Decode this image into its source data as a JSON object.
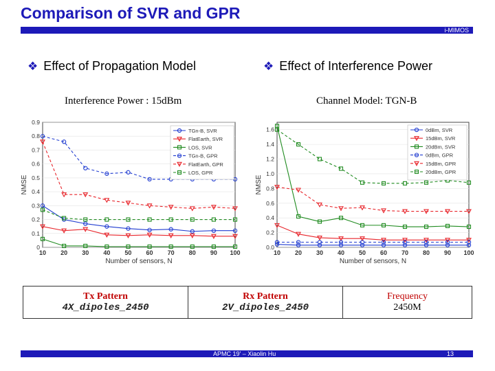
{
  "slide": {
    "title": "Comparison of SVR and GPR",
    "header_tag": "i-MIMOS",
    "left_heading": "Effect of Propagation Model",
    "right_heading": "Effect of Interference Power",
    "bullet_glyph": "❖",
    "left_subheading": "Interference Power : 15dBm",
    "right_subheading": "Channel Model: TGN-B",
    "footer_text": "APMC 19' – Xiaolin Hu",
    "page_number": "13"
  },
  "config": {
    "tx_label": "Tx Pattern",
    "tx_value": "4X_dipoles_2450",
    "rx_label": "Rx Pattern",
    "rx_value": "2V_dipoles_2450",
    "freq_label": "Frequency",
    "freq_value": "2450M"
  },
  "colors": {
    "accent": "#1d1ab8",
    "blue": "#1f3bd0",
    "red": "#e8242a",
    "green": "#1e8a1e",
    "label_red": "#c00000"
  },
  "chart_data": [
    {
      "type": "line",
      "xlabel": "Number of sensors, N",
      "ylabel": "NMSE",
      "x": [
        10,
        20,
        30,
        40,
        50,
        60,
        70,
        80,
        90,
        100
      ],
      "xticks": [
        "10",
        "20",
        "30",
        "40",
        "50",
        "60",
        "70",
        "80",
        "90",
        "100"
      ],
      "yticks": [
        "0",
        "0.1",
        "0.2",
        "0.3",
        "0.4",
        "0.5",
        "0.6",
        "0.7",
        "0.8",
        "0.9"
      ],
      "ylim": [
        0,
        0.9
      ],
      "legend_position": "top-right",
      "series": [
        {
          "name": "TGn-B, SVR",
          "color": "blue",
          "style": "solid",
          "marker": "circle",
          "values": [
            0.3,
            0.2,
            0.17,
            0.15,
            0.135,
            0.125,
            0.13,
            0.115,
            0.12,
            0.12
          ]
        },
        {
          "name": "FlatEarth, SVR",
          "color": "red",
          "style": "solid",
          "marker": "triangle-down",
          "values": [
            0.15,
            0.12,
            0.13,
            0.09,
            0.085,
            0.09,
            0.085,
            0.085,
            0.08,
            0.08
          ]
        },
        {
          "name": "LOS, SVR",
          "color": "green",
          "style": "solid",
          "marker": "square",
          "values": [
            0.06,
            0.01,
            0.01,
            0.005,
            0.005,
            0.005,
            0.005,
            0.005,
            0.005,
            0.005
          ]
        },
        {
          "name": "TGn-B, GPR",
          "color": "blue",
          "style": "dashed",
          "marker": "circle",
          "values": [
            0.8,
            0.76,
            0.57,
            0.53,
            0.54,
            0.49,
            0.49,
            0.49,
            0.49,
            0.49
          ]
        },
        {
          "name": "FlatEarth, GPR",
          "color": "red",
          "style": "dashed",
          "marker": "triangle-down",
          "values": [
            0.76,
            0.38,
            0.38,
            0.34,
            0.32,
            0.3,
            0.29,
            0.28,
            0.29,
            0.28
          ]
        },
        {
          "name": "LOS, GPR",
          "color": "green",
          "style": "dashed",
          "marker": "square",
          "values": [
            0.27,
            0.21,
            0.2,
            0.2,
            0.2,
            0.2,
            0.2,
            0.2,
            0.2,
            0.2
          ]
        }
      ]
    },
    {
      "type": "line",
      "xlabel": "Number of sensors, N",
      "ylabel": "NMSE",
      "x": [
        10,
        20,
        30,
        40,
        50,
        60,
        70,
        80,
        90,
        100
      ],
      "xticks": [
        "10",
        "20",
        "30",
        "40",
        "50",
        "60",
        "70",
        "80",
        "90",
        "100"
      ],
      "yticks": [
        "0.0",
        "0.2",
        "0.4",
        "0.6",
        "0.8",
        "1.0",
        "1.2",
        "1.4",
        "1.6"
      ],
      "ylim": [
        0,
        1.7
      ],
      "legend_position": "top-right",
      "series": [
        {
          "name": "0dBm, SVR",
          "color": "blue",
          "style": "solid",
          "marker": "circle",
          "values": [
            0.04,
            0.03,
            0.03,
            0.03,
            0.03,
            0.03,
            0.03,
            0.03,
            0.03,
            0.03
          ]
        },
        {
          "name": "15dBm, SVR",
          "color": "red",
          "style": "solid",
          "marker": "triangle-down",
          "values": [
            0.3,
            0.18,
            0.13,
            0.12,
            0.12,
            0.1,
            0.1,
            0.1,
            0.1,
            0.1
          ]
        },
        {
          "name": "20dBm, SVR",
          "color": "green",
          "style": "solid",
          "marker": "square",
          "values": [
            1.65,
            0.42,
            0.35,
            0.4,
            0.3,
            0.3,
            0.28,
            0.28,
            0.29,
            0.28
          ]
        },
        {
          "name": "0dBm, GPR",
          "color": "blue",
          "style": "dashed",
          "marker": "circle",
          "values": [
            0.07,
            0.07,
            0.07,
            0.07,
            0.07,
            0.07,
            0.07,
            0.07,
            0.07,
            0.07
          ]
        },
        {
          "name": "15dBm, GPR",
          "color": "red",
          "style": "dashed",
          "marker": "triangle-down",
          "values": [
            0.82,
            0.78,
            0.58,
            0.53,
            0.54,
            0.5,
            0.49,
            0.49,
            0.49,
            0.49
          ]
        },
        {
          "name": "20dBm, GPR",
          "color": "green",
          "style": "dashed",
          "marker": "square",
          "values": [
            1.6,
            1.4,
            1.2,
            1.07,
            0.88,
            0.87,
            0.87,
            0.88,
            0.91,
            0.88
          ]
        }
      ]
    }
  ]
}
